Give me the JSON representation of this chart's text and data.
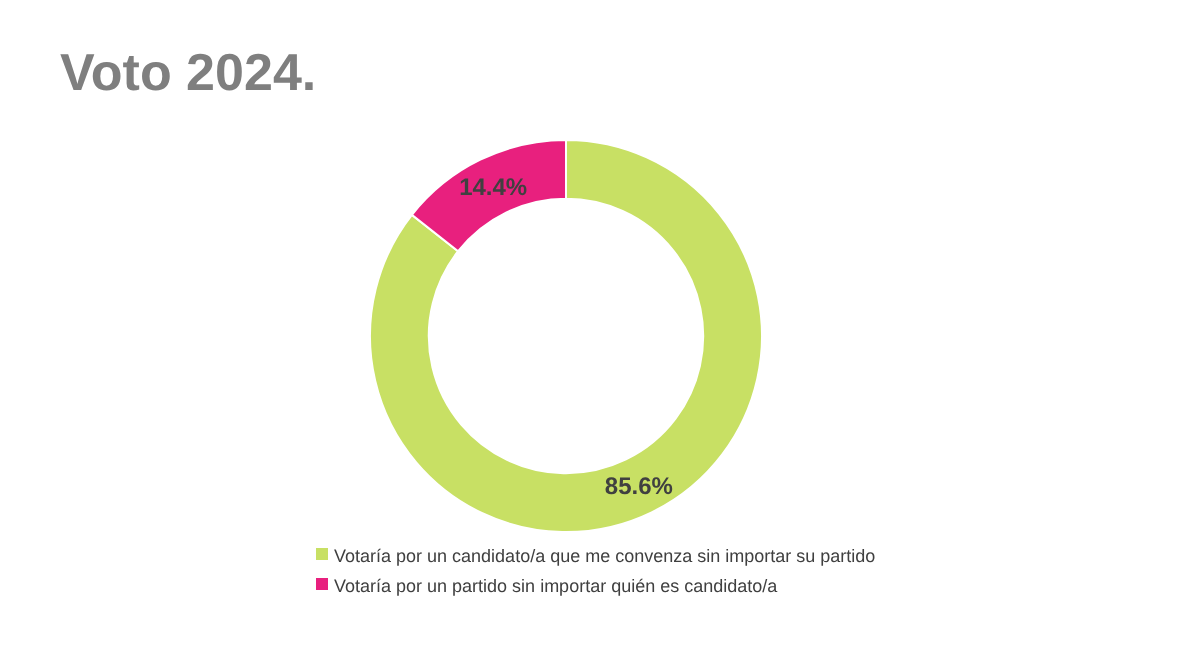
{
  "chart_data": {
    "type": "donut",
    "title": "Voto 2024.",
    "categories": [
      "Votaría por un candidato/a que me convenza sin importar su partido",
      "Votaría por un partido sin importar quién es candidato/a"
    ],
    "values": [
      85.6,
      14.4
    ],
    "colors": [
      "#c8e064",
      "#e8207e"
    ],
    "value_labels": [
      "85.6%",
      "14.4%"
    ],
    "legend": "bottom"
  }
}
